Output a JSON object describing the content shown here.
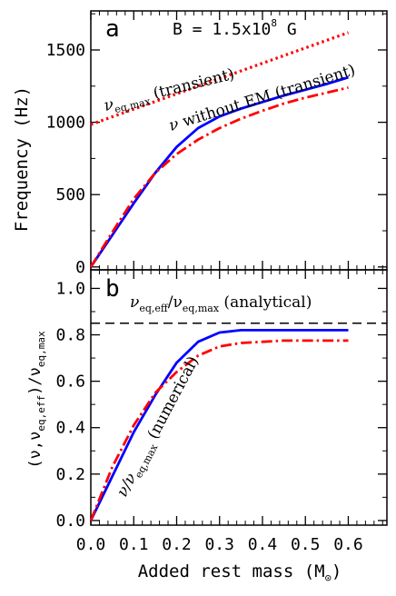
{
  "chart_data": [
    {
      "type": "line",
      "panel_label": "a",
      "annotation_top": "B = 1.5x10",
      "annotation_top_exp": "8",
      "annotation_top_unit": " G",
      "ylabel": "Frequency (Hz)",
      "xlim": [
        0.0,
        0.69
      ],
      "ylim": [
        -20,
        1770
      ],
      "yticks": [
        0,
        500,
        1000,
        1500
      ],
      "ytick_labels": [
        "0",
        "500",
        "1000",
        "1500"
      ],
      "series": [
        {
          "line_label_main": "ν",
          "line_label_sub": "eq,max",
          "line_label_rest": " (transient)",
          "color": "#ff0000",
          "style": "dotted",
          "x": [
            0.0,
            0.6
          ],
          "y": [
            985,
            1620
          ]
        },
        {
          "line_label_main": "ν",
          "line_label_rest": " without EM (transient)",
          "color": "#0000ff",
          "style": "solid",
          "x": [
            0.0,
            0.05,
            0.1,
            0.15,
            0.2,
            0.25,
            0.3,
            0.35,
            0.4,
            0.45,
            0.5,
            0.55,
            0.6
          ],
          "y": [
            0,
            220,
            440,
            650,
            830,
            960,
            1040,
            1095,
            1140,
            1185,
            1225,
            1265,
            1310
          ]
        },
        {
          "color": "#ff0000",
          "style": "dashdot",
          "x": [
            0.0,
            0.05,
            0.1,
            0.15,
            0.2,
            0.25,
            0.3,
            0.35,
            0.4,
            0.45,
            0.5,
            0.55,
            0.6
          ],
          "y": [
            0,
            240,
            470,
            650,
            780,
            880,
            960,
            1025,
            1080,
            1130,
            1170,
            1205,
            1240
          ]
        }
      ]
    },
    {
      "type": "line",
      "panel_label": "b",
      "xlabel_main": "Added rest mass (M",
      "xlabel_sub": "⊙",
      "xlabel_end": ")",
      "ylabel": "(ν,ν_eq,eff)/ν_eq,max",
      "ylabel_parts": {
        "open": "(ν,ν",
        "sub1": "eq,eff",
        "mid": ")/ν",
        "sub2": "eq,max"
      },
      "xlim": [
        0.0,
        0.69
      ],
      "ylim": [
        -0.02,
        1.08
      ],
      "xticks": [
        0.0,
        0.1,
        0.2,
        0.3,
        0.4,
        0.5,
        0.6
      ],
      "xtick_labels": [
        "0.0",
        "0.1",
        "0.2",
        "0.3",
        "0.4",
        "0.5",
        "0.6"
      ],
      "yticks": [
        0.0,
        0.2,
        0.4,
        0.6,
        0.8,
        1.0
      ],
      "ytick_labels": [
        "0.0",
        "0.2",
        "0.4",
        "0.6",
        "0.8",
        "1.0"
      ],
      "hline": {
        "y": 0.85,
        "color": "#000000",
        "style": "dashed",
        "label_main": "ν",
        "label_sub1": "eq,eff",
        "label_mid": "/ν",
        "label_sub2": "eq,max",
        "label_rest": " (analytical)"
      },
      "curve_label": {
        "main": "ν/ν",
        "sub": "eq,max",
        "rest": " (numerical)"
      },
      "series": [
        {
          "color": "#0000ff",
          "style": "solid",
          "x": [
            0.0,
            0.05,
            0.1,
            0.15,
            0.2,
            0.25,
            0.3,
            0.35,
            0.4,
            0.45,
            0.5,
            0.55,
            0.6
          ],
          "y": [
            0,
            0.19,
            0.38,
            0.54,
            0.68,
            0.77,
            0.81,
            0.82,
            0.82,
            0.82,
            0.82,
            0.82,
            0.82
          ]
        },
        {
          "color": "#ff0000",
          "style": "dashdot",
          "x": [
            0.0,
            0.05,
            0.1,
            0.15,
            0.2,
            0.25,
            0.3,
            0.35,
            0.4,
            0.45,
            0.5,
            0.55,
            0.6
          ],
          "y": [
            0,
            0.23,
            0.41,
            0.55,
            0.64,
            0.71,
            0.75,
            0.765,
            0.77,
            0.775,
            0.775,
            0.775,
            0.775
          ]
        }
      ]
    }
  ]
}
